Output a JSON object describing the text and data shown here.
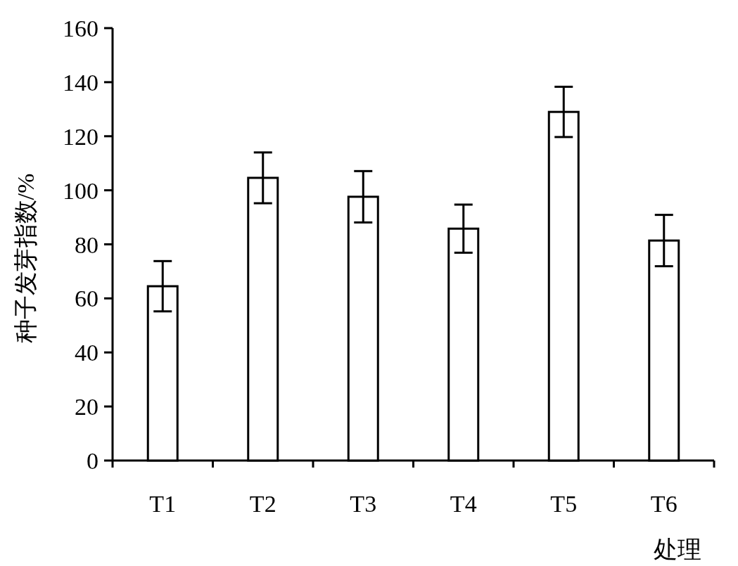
{
  "chart_data": {
    "type": "bar",
    "categories": [
      "T1",
      "T2",
      "T3",
      "T4",
      "T5",
      "T6"
    ],
    "values": [
      64.5,
      104.6,
      97.6,
      85.8,
      129,
      81.4
    ],
    "errors": [
      9.3,
      9.4,
      9.5,
      8.9,
      9.3,
      9.5
    ],
    "color": "#ffffff",
    "ylim": [
      0,
      160
    ],
    "yticks": [
      0,
      20,
      40,
      60,
      80,
      100,
      120,
      140,
      160
    ],
    "xlabel": "处理",
    "ylabel": "种子发芽指数/%"
  }
}
